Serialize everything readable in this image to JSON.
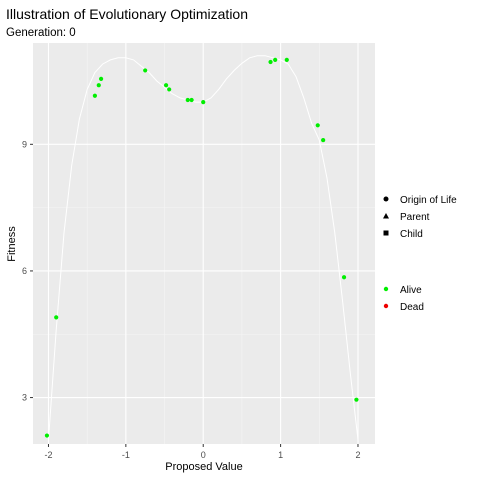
{
  "chart_data": {
    "type": "scatter",
    "title": "Illustration of Evolutionary Optimization",
    "subtitle": "Generation: 0",
    "xlabel": "Proposed Value",
    "ylabel": "Fitness",
    "xlim": [
      -2.2,
      2.22
    ],
    "ylim": [
      1.9,
      11.4
    ],
    "x_ticks": [
      -2,
      -1,
      0,
      1,
      2
    ],
    "y_ticks": [
      3,
      6,
      9
    ],
    "grid": true,
    "legend_position": "right",
    "curve": {
      "x": [
        -2.0,
        -1.9,
        -1.8,
        -1.7,
        -1.6,
        -1.5,
        -1.4,
        -1.3,
        -1.2,
        -1.1,
        -1.0,
        -0.9,
        -0.8,
        -0.7,
        -0.6,
        -0.5,
        -0.4,
        -0.3,
        -0.2,
        -0.1,
        0.0,
        0.1,
        0.2,
        0.3,
        0.4,
        0.5,
        0.6,
        0.7,
        0.8,
        0.9,
        1.0,
        1.1,
        1.2,
        1.3,
        1.4,
        1.5,
        1.6,
        1.7,
        1.8,
        1.9,
        2.0
      ],
      "y": [
        2.0,
        4.6,
        6.9,
        8.5,
        9.6,
        10.3,
        10.7,
        10.9,
        11.0,
        11.05,
        11.05,
        11.0,
        10.85,
        10.7,
        10.5,
        10.35,
        10.2,
        10.1,
        10.05,
        10.0,
        10.0,
        10.1,
        10.3,
        10.55,
        10.75,
        10.92,
        11.05,
        11.1,
        11.1,
        11.05,
        11.0,
        10.9,
        10.6,
        10.1,
        9.5,
        9.1,
        8.2,
        6.9,
        5.3,
        3.6,
        2.0
      ]
    },
    "shape_legend": {
      "items": [
        {
          "label": "Origin of Life",
          "shape": "circle"
        },
        {
          "label": "Parent",
          "shape": "triangle"
        },
        {
          "label": "Child",
          "shape": "square"
        }
      ]
    },
    "color_legend": {
      "items": [
        {
          "label": "Alive",
          "color": "#00ee00"
        },
        {
          "label": "Dead",
          "color": "#ee0000"
        }
      ]
    },
    "series": [
      {
        "status": "Alive",
        "shape": "circle",
        "color": "#00ee00",
        "points": [
          {
            "x": -2.02,
            "y": 2.1
          },
          {
            "x": -1.9,
            "y": 4.9
          },
          {
            "x": -1.4,
            "y": 10.15
          },
          {
            "x": -1.35,
            "y": 10.4
          },
          {
            "x": -1.32,
            "y": 10.55
          },
          {
            "x": -0.75,
            "y": 10.75
          },
          {
            "x": -0.48,
            "y": 10.4
          },
          {
            "x": -0.44,
            "y": 10.3
          },
          {
            "x": -0.2,
            "y": 10.05
          },
          {
            "x": -0.15,
            "y": 10.05
          },
          {
            "x": 0.0,
            "y": 10.0
          },
          {
            "x": 0.87,
            "y": 10.95
          },
          {
            "x": 0.93,
            "y": 11.0
          },
          {
            "x": 1.08,
            "y": 11.0
          },
          {
            "x": 1.48,
            "y": 9.45
          },
          {
            "x": 1.55,
            "y": 9.1
          },
          {
            "x": 1.82,
            "y": 5.85
          },
          {
            "x": 1.98,
            "y": 2.95
          }
        ]
      }
    ]
  }
}
